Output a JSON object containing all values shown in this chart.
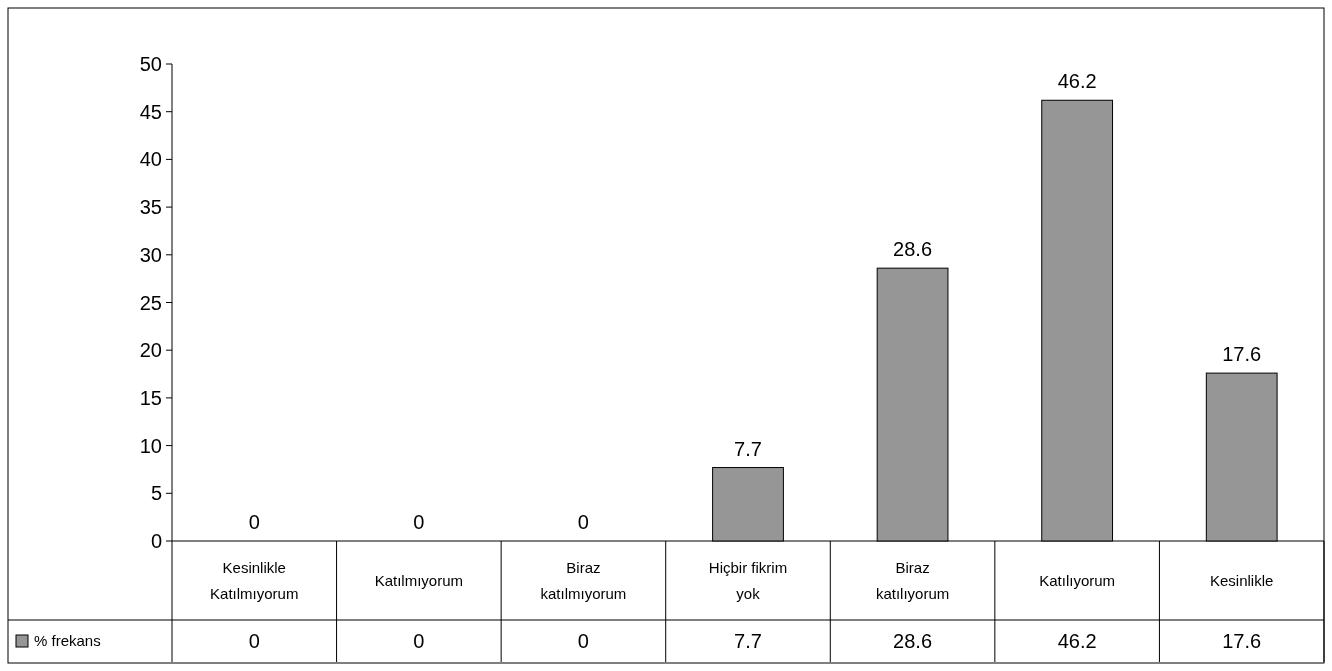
{
  "chart_data": {
    "type": "bar",
    "categories": [
      "Kesinlikle Katılmıyorum",
      "Katılmıyorum",
      "Biraz katılmıyorum",
      "Hiçbir fikrim yok",
      "Biraz katılıyorum",
      "Katılıyorum",
      "Kesinlikle"
    ],
    "series": [
      {
        "name": "% frekans",
        "color": "#969696",
        "values": [
          0,
          0,
          0,
          7.7,
          28.6,
          46.2,
          17.6
        ]
      }
    ],
    "annotations": [
      "0",
      "0",
      "0",
      "7.7",
      "28.6",
      "46.2",
      "17.6"
    ],
    "ylim": [
      0,
      50
    ],
    "yticks": [
      0,
      5,
      10,
      15,
      20,
      25,
      30,
      35,
      40,
      45,
      50
    ],
    "data_labels": true,
    "legend": "bottom left",
    "grid": false
  }
}
